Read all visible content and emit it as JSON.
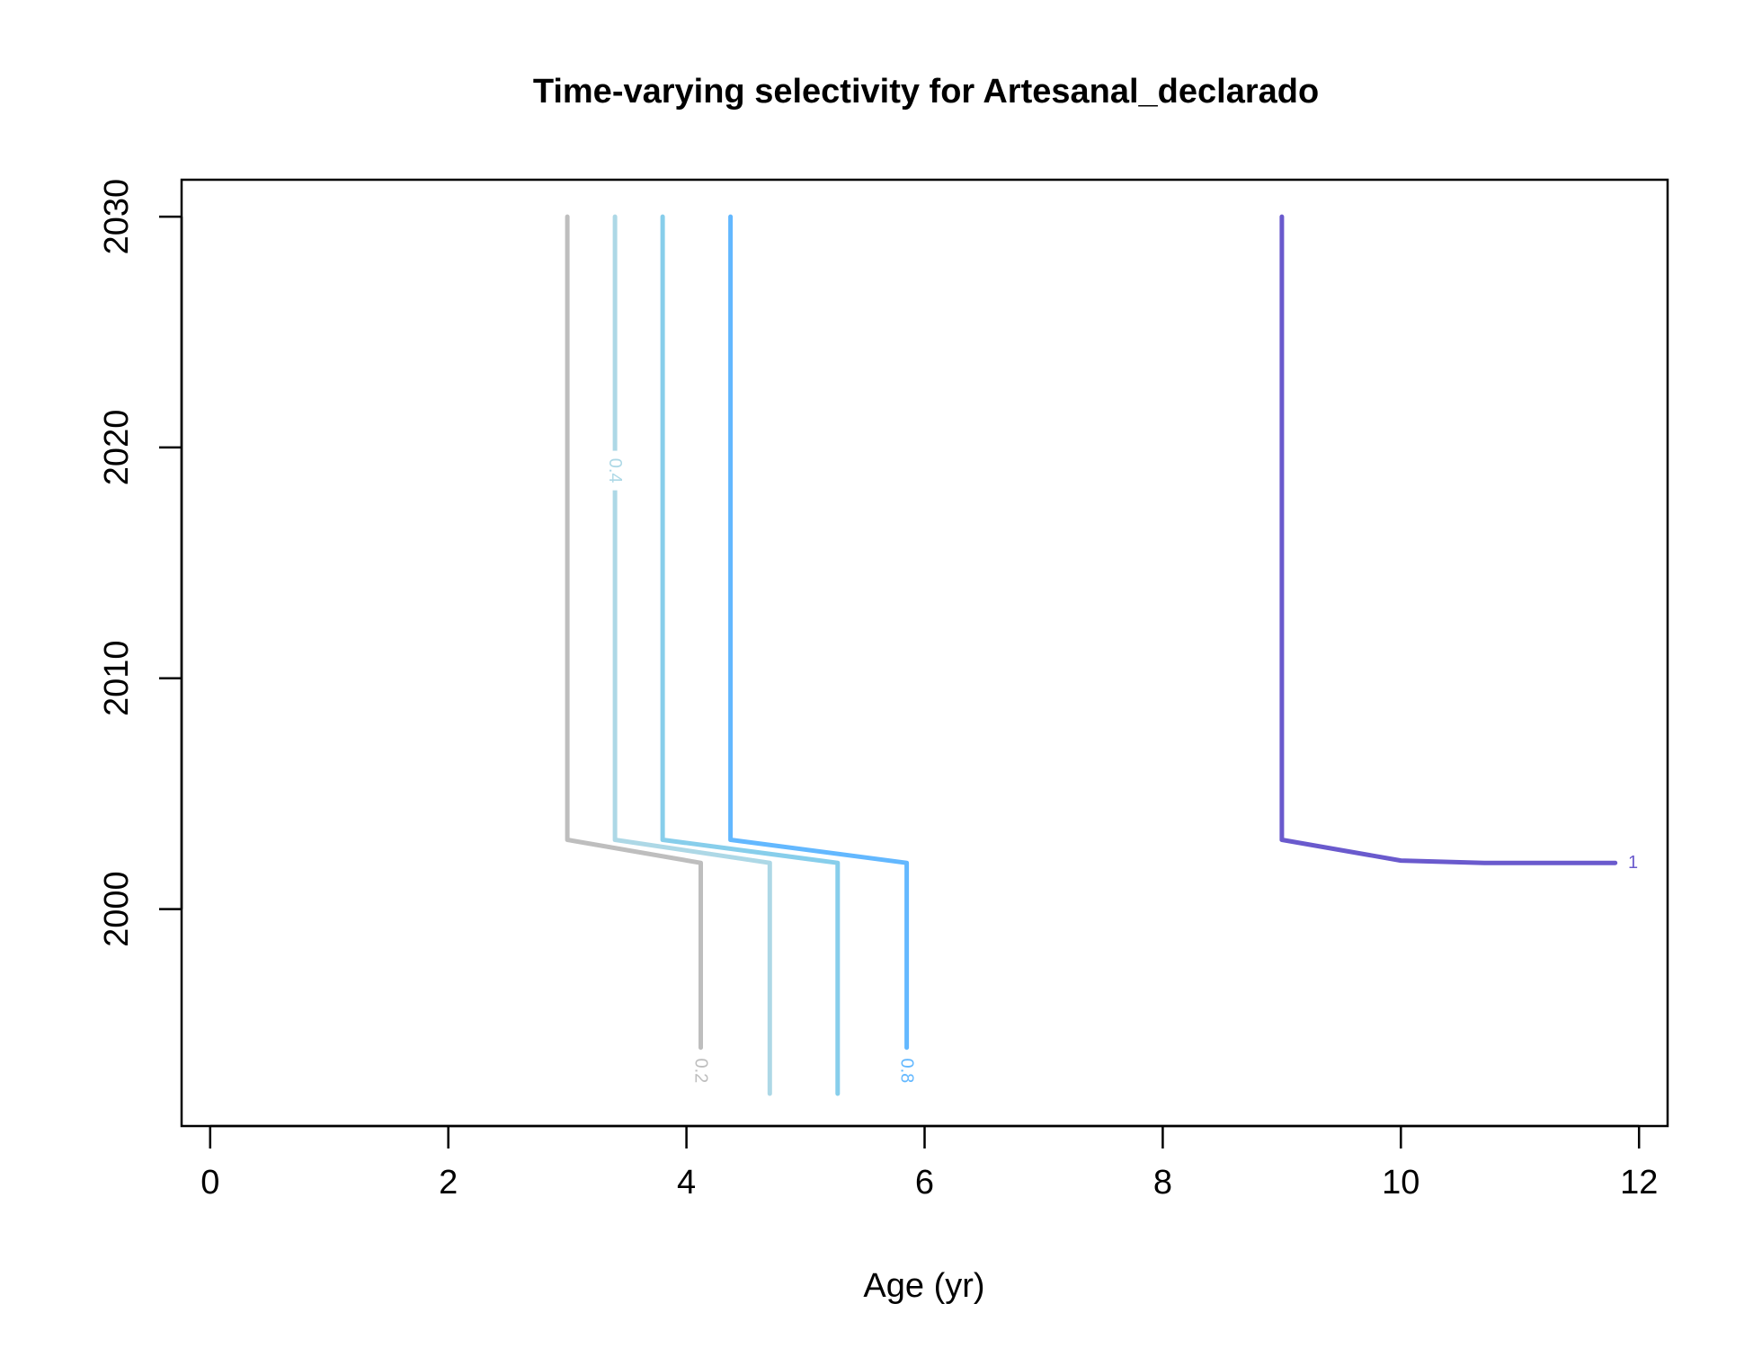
{
  "chart_data": {
    "type": "line",
    "title": "Time-varying selectivity for Artesanal_declarado",
    "xlabel": "Age (yr)",
    "ylabel": "",
    "xlim": [
      -0.24,
      12.24
    ],
    "ylim": [
      1990.6,
      2031.6
    ],
    "x_ticks": [
      0,
      2,
      4,
      6,
      8,
      10,
      12
    ],
    "y_ticks": [
      2000,
      2010,
      2020,
      2030
    ],
    "grid": false,
    "legend": "none",
    "series": [
      {
        "label": "0.2",
        "color": "#bebebe",
        "points": [
          [
            3.0,
            2030
          ],
          [
            3.0,
            2003
          ],
          [
            4.12,
            2002
          ],
          [
            4.12,
            1994
          ]
        ],
        "label_at": [
          4.12,
          1993
        ]
      },
      {
        "label": "0.4",
        "color": "#add8e6",
        "points": [
          [
            3.4,
            2030
          ],
          [
            3.4,
            2003
          ],
          [
            4.7,
            2002
          ],
          [
            4.7,
            1992
          ]
        ],
        "label_at": [
          3.4,
          2019
        ]
      },
      {
        "label": "",
        "color": "#87ceeb",
        "points": [
          [
            3.8,
            2030
          ],
          [
            3.8,
            2003
          ],
          [
            5.27,
            2002
          ],
          [
            5.27,
            1992
          ]
        ],
        "label_at": null
      },
      {
        "label": "0.8",
        "color": "#63b8ff",
        "points": [
          [
            4.37,
            2030
          ],
          [
            4.37,
            2003
          ],
          [
            5.85,
            2002
          ],
          [
            5.85,
            1994
          ]
        ],
        "label_at": [
          5.85,
          1993
        ]
      },
      {
        "label": "1",
        "color": "#6a5acd",
        "points": [
          [
            9.0,
            2030
          ],
          [
            9.0,
            2003
          ],
          [
            10.0,
            2002.1
          ],
          [
            10.7,
            2002
          ],
          [
            11.8,
            2002
          ]
        ],
        "label_at": [
          11.95,
          2002
        ]
      }
    ]
  }
}
